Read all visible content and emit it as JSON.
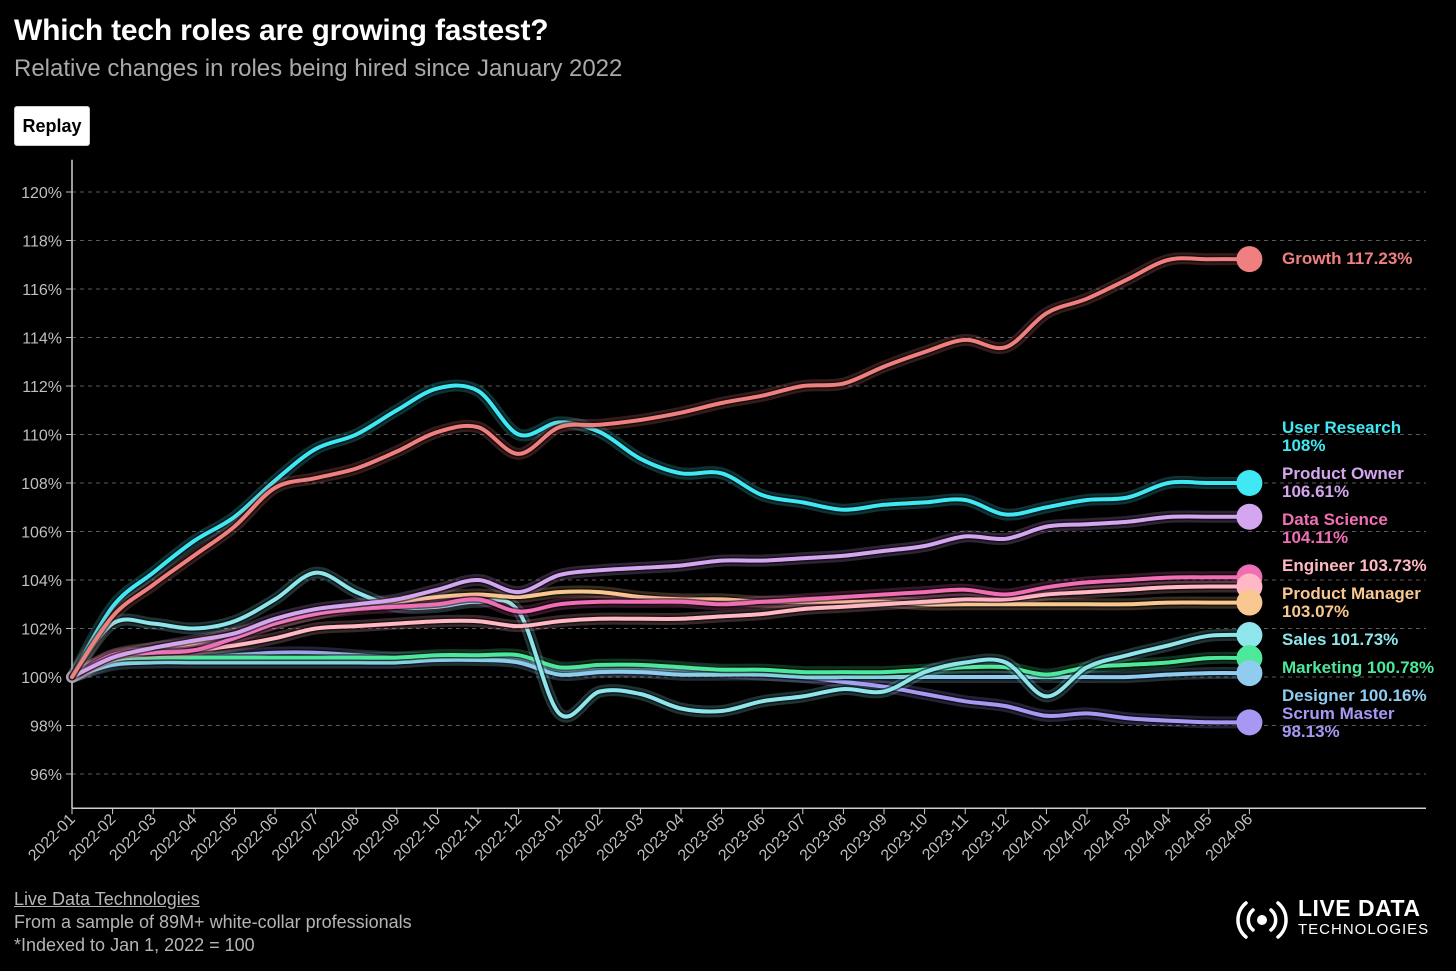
{
  "header": {
    "title": "Which tech roles are growing fastest?",
    "subtitle": "Relative changes in roles being hired since January 2022",
    "replay_label": "Replay"
  },
  "footer": {
    "source": "Live Data Technologies",
    "sample_note": "From a sample of 89M+ white-collar professionals",
    "index_note": "*Indexed to Jan 1, 2022 = 100"
  },
  "logo": {
    "line1": "LIVE DATA",
    "line2": "TECHNOLOGIES",
    "icon": "broadcast-icon"
  },
  "chart_data": {
    "type": "line",
    "ylim": [
      95,
      121
    ],
    "yticks": [
      96,
      98,
      100,
      102,
      104,
      106,
      108,
      110,
      112,
      114,
      116,
      118,
      120
    ],
    "ytick_labels": [
      "96%",
      "98%",
      "100%",
      "102%",
      "104%",
      "106%",
      "108%",
      "110%",
      "112%",
      "114%",
      "116%",
      "118%",
      "120%"
    ],
    "grid": "horizontal-dashed",
    "x": [
      "2022-01",
      "2022-02",
      "2022-03",
      "2022-04",
      "2022-05",
      "2022-06",
      "2022-07",
      "2022-08",
      "2022-09",
      "2022-10",
      "2022-11",
      "2022-12",
      "2023-01",
      "2023-02",
      "2023-03",
      "2023-04",
      "2023-05",
      "2023-06",
      "2023-07",
      "2023-08",
      "2023-09",
      "2023-10",
      "2023-11",
      "2023-12",
      "2024-01",
      "2024-02",
      "2024-03",
      "2024-04",
      "2024-05",
      "2024-06"
    ],
    "series": [
      {
        "name": "Growth",
        "end_label": "117.23%",
        "label_lines": [
          "Growth 117.23%"
        ],
        "color": "#f08080",
        "values": [
          100,
          102.5,
          103.8,
          105,
          106.2,
          107.8,
          108.2,
          108.6,
          109.3,
          110.1,
          110.3,
          109.2,
          110.3,
          110.4,
          110.6,
          110.9,
          111.3,
          111.6,
          112,
          112.1,
          112.8,
          113.4,
          113.9,
          113.6,
          115,
          115.6,
          116.4,
          117.2,
          117.23,
          117.23
        ]
      },
      {
        "name": "User Research",
        "end_label": "108%",
        "label_lines": [
          "User Research",
          "108%"
        ],
        "color": "#40e8f4",
        "values": [
          100,
          102.9,
          104.3,
          105.6,
          106.6,
          108.1,
          109.4,
          110,
          111,
          111.9,
          111.8,
          110,
          110.5,
          110.1,
          109,
          108.4,
          108.4,
          107.5,
          107.2,
          106.9,
          107.1,
          107.2,
          107.3,
          106.7,
          107,
          107.3,
          107.4,
          108,
          108,
          108
        ]
      },
      {
        "name": "Product Owner",
        "end_label": "106.61%",
        "label_lines": [
          "Product Owner",
          "106.61%"
        ],
        "color": "#d4a6f0",
        "values": [
          100,
          100.8,
          101.2,
          101.5,
          101.8,
          102.4,
          102.8,
          103,
          103.2,
          103.6,
          104,
          103.5,
          104.2,
          104.4,
          104.5,
          104.6,
          104.8,
          104.8,
          104.9,
          105,
          105.2,
          105.4,
          105.8,
          105.7,
          106.2,
          106.3,
          106.4,
          106.6,
          106.61,
          106.61
        ]
      },
      {
        "name": "Data Science",
        "end_label": "104.11%",
        "label_lines": [
          "Data Science",
          "104.11%"
        ],
        "color": "#f06fb4",
        "values": [
          100,
          100.9,
          101,
          101.1,
          101.6,
          102.2,
          102.6,
          102.8,
          102.9,
          103,
          103.2,
          102.7,
          103,
          103.1,
          103.1,
          103.1,
          103,
          103.1,
          103.2,
          103.3,
          103.4,
          103.5,
          103.6,
          103.4,
          103.7,
          103.9,
          104,
          104.1,
          104.11,
          104.11
        ]
      },
      {
        "name": "Engineer",
        "end_label": "103.73%",
        "label_lines": [
          "Engineer 103.73%"
        ],
        "color": "#ffb8c4",
        "values": [
          100,
          100.8,
          101,
          101.1,
          101.3,
          101.6,
          102,
          102.1,
          102.2,
          102.3,
          102.3,
          102.1,
          102.3,
          102.4,
          102.4,
          102.4,
          102.5,
          102.6,
          102.8,
          102.9,
          103,
          103.1,
          103.2,
          103.2,
          103.4,
          103.5,
          103.6,
          103.7,
          103.73,
          103.73
        ]
      },
      {
        "name": "Product Manager",
        "end_label": "103.07%",
        "label_lines": [
          "Product Manager",
          "103.07%"
        ],
        "color": "#f8c890",
        "values": [
          100,
          100.9,
          101.2,
          101.4,
          101.8,
          102.2,
          102.6,
          102.9,
          103.1,
          103.3,
          103.4,
          103.3,
          103.5,
          103.5,
          103.3,
          103.2,
          103.2,
          103.1,
          103.1,
          103.1,
          103.1,
          103,
          103,
          103,
          103,
          103,
          103,
          103.07,
          103.07,
          103.07
        ]
      },
      {
        "name": "Sales",
        "end_label": "101.73%",
        "label_lines": [
          "Sales 101.73%"
        ],
        "color": "#8ee6ec",
        "values": [
          100,
          102.2,
          102.2,
          102,
          102.3,
          103.2,
          104.3,
          103.5,
          102.9,
          102.9,
          103.1,
          102.7,
          98.5,
          99.4,
          99.3,
          98.7,
          98.6,
          99,
          99.2,
          99.5,
          99.4,
          100.2,
          100.6,
          100.6,
          99.2,
          100.4,
          100.9,
          101.3,
          101.7,
          101.73
        ]
      },
      {
        "name": "Marketing",
        "end_label": "100.78%",
        "label_lines": [
          "Marketing 100.78%"
        ],
        "color": "#4ee89a",
        "values": [
          100,
          100.7,
          100.8,
          100.8,
          100.8,
          100.8,
          100.8,
          100.8,
          100.8,
          100.9,
          100.9,
          100.9,
          100.4,
          100.5,
          100.5,
          100.4,
          100.3,
          100.3,
          100.2,
          100.2,
          100.2,
          100.3,
          100.4,
          100.4,
          100.1,
          100.4,
          100.5,
          100.6,
          100.78,
          100.78
        ]
      },
      {
        "name": "Designer",
        "end_label": "100.16%",
        "label_lines": [
          "Designer 100.16%"
        ],
        "color": "#90ccf0",
        "values": [
          100,
          100.5,
          100.6,
          100.6,
          100.6,
          100.6,
          100.6,
          100.6,
          100.6,
          100.7,
          100.7,
          100.6,
          100.1,
          100.2,
          100.2,
          100.1,
          100.1,
          100.1,
          100,
          100,
          100,
          100,
          100,
          100,
          100,
          100,
          100,
          100.1,
          100.16,
          100.16
        ]
      },
      {
        "name": "Scrum Master",
        "end_label": "98.13%",
        "label_lines": [
          "Scrum Master",
          "98.13%"
        ],
        "color": "#a898f4",
        "values": [
          100,
          100.6,
          100.8,
          100.8,
          100.9,
          101,
          101,
          100.9,
          100.8,
          100.8,
          100.8,
          100.7,
          100.3,
          100.3,
          100.3,
          100.3,
          100.2,
          100.1,
          100,
          99.8,
          99.6,
          99.3,
          99,
          98.8,
          98.4,
          98.5,
          98.3,
          98.2,
          98.13,
          98.13
        ]
      }
    ]
  }
}
